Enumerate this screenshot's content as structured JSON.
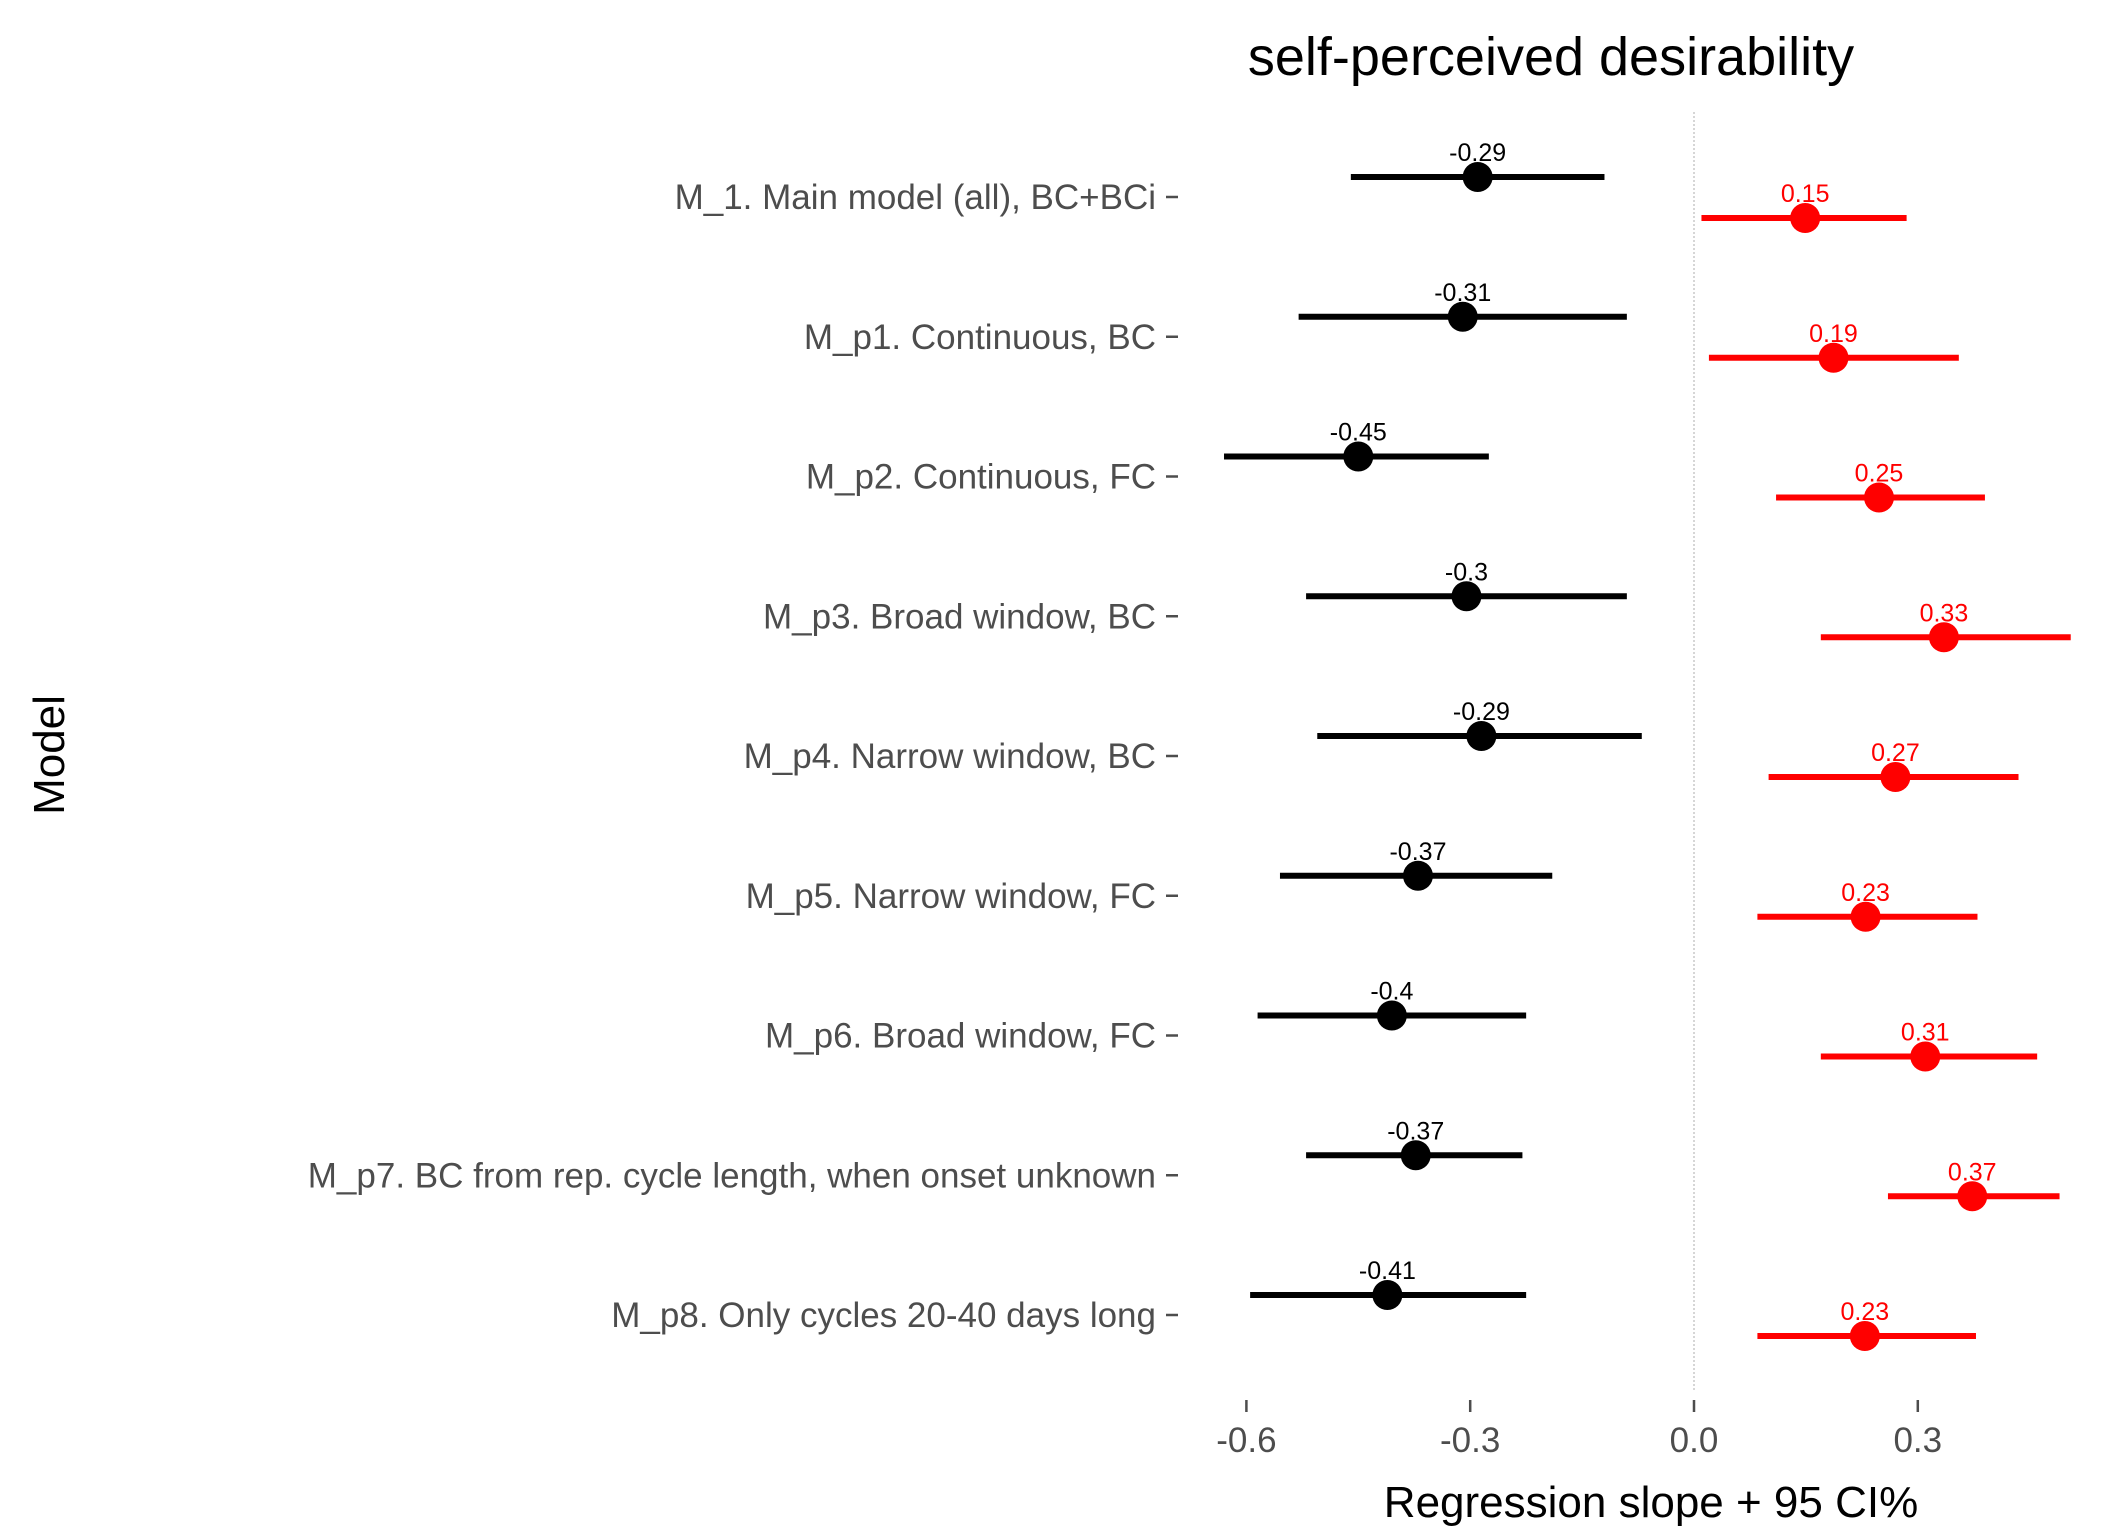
{
  "chart_data": {
    "type": "forest",
    "title": "self-perceived desirability",
    "xlabel": "Regression slope + 95 CI%",
    "ylabel": "Model",
    "xlim": [
      -0.7,
      0.52
    ],
    "xticks": [
      "-0.6",
      "-0.3",
      "0.0",
      "0.3"
    ],
    "xtick_values": [
      -0.6,
      -0.3,
      0.0,
      0.3
    ],
    "reference_line": 0.0,
    "grid": false,
    "categories": [
      "M_1. Main model (all), BC+BCi",
      "M_p1. Continuous, BC",
      "M_p2. Continuous, FC",
      "M_p3. Broad window, BC",
      "M_p4. Narrow window, BC",
      "M_p5. Narrow window, FC",
      "M_p6. Broad window, FC",
      "M_p7. BC from rep. cycle length, when onset unknown",
      "M_p8. Only cycles 20-40 days long"
    ],
    "series": [
      {
        "color": "#000000",
        "offset": "above",
        "points": [
          {
            "label": "-0.29",
            "estimate": -0.29,
            "lower": -0.46,
            "upper": -0.12
          },
          {
            "label": "-0.31",
            "estimate": -0.31,
            "lower": -0.53,
            "upper": -0.09
          },
          {
            "label": "-0.45",
            "estimate": -0.45,
            "lower": -0.63,
            "upper": -0.275
          },
          {
            "label": "-0.3",
            "estimate": -0.305,
            "lower": -0.52,
            "upper": -0.09
          },
          {
            "label": "-0.29",
            "estimate": -0.285,
            "lower": -0.505,
            "upper": -0.07
          },
          {
            "label": "-0.37",
            "estimate": -0.37,
            "lower": -0.555,
            "upper": -0.19
          },
          {
            "label": "-0.4",
            "estimate": -0.405,
            "lower": -0.585,
            "upper": -0.225
          },
          {
            "label": "-0.37",
            "estimate": -0.373,
            "lower": -0.52,
            "upper": -0.23
          },
          {
            "label": "-0.41",
            "estimate": -0.411,
            "lower": -0.595,
            "upper": -0.225
          }
        ]
      },
      {
        "color": "#ff0000",
        "offset": "below",
        "points": [
          {
            "label": "0.15",
            "estimate": 0.149,
            "lower": 0.01,
            "upper": 0.285
          },
          {
            "label": "0.19",
            "estimate": 0.187,
            "lower": 0.02,
            "upper": 0.355
          },
          {
            "label": "0.25",
            "estimate": 0.248,
            "lower": 0.11,
            "upper": 0.39
          },
          {
            "label": "0.33",
            "estimate": 0.335,
            "lower": 0.17,
            "upper": 0.505
          },
          {
            "label": "0.27",
            "estimate": 0.27,
            "lower": 0.1,
            "upper": 0.435
          },
          {
            "label": "0.23",
            "estimate": 0.23,
            "lower": 0.085,
            "upper": 0.38
          },
          {
            "label": "0.31",
            "estimate": 0.31,
            "lower": 0.17,
            "upper": 0.46
          },
          {
            "label": "0.37",
            "estimate": 0.373,
            "lower": 0.26,
            "upper": 0.49
          },
          {
            "label": "0.23",
            "estimate": 0.229,
            "lower": 0.085,
            "upper": 0.378
          }
        ]
      }
    ]
  }
}
